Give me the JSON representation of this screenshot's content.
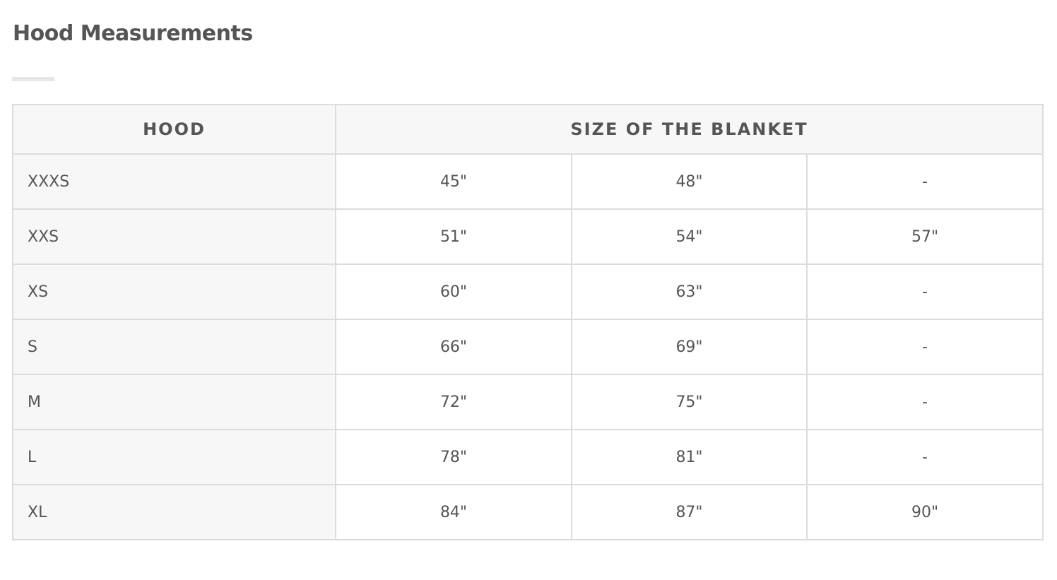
{
  "title": "Hood Measurements",
  "table": {
    "headers": [
      "HOOD",
      "SIZE OF THE BLANKET"
    ],
    "rows": [
      {
        "size": "XXXS",
        "values": [
          "45\"",
          "48\"",
          "-"
        ]
      },
      {
        "size": "XXS",
        "values": [
          "51\"",
          "54\"",
          "57\""
        ]
      },
      {
        "size": "XS",
        "values": [
          "60\"",
          "63\"",
          "-"
        ]
      },
      {
        "size": "S",
        "values": [
          "66\"",
          "69\"",
          "-"
        ]
      },
      {
        "size": "M",
        "values": [
          "72\"",
          "75\"",
          "-"
        ]
      },
      {
        "size": "L",
        "values": [
          "78\"",
          "81\"",
          "-"
        ]
      },
      {
        "size": "XL",
        "values": [
          "84\"",
          "87\"",
          "90\""
        ]
      }
    ]
  }
}
